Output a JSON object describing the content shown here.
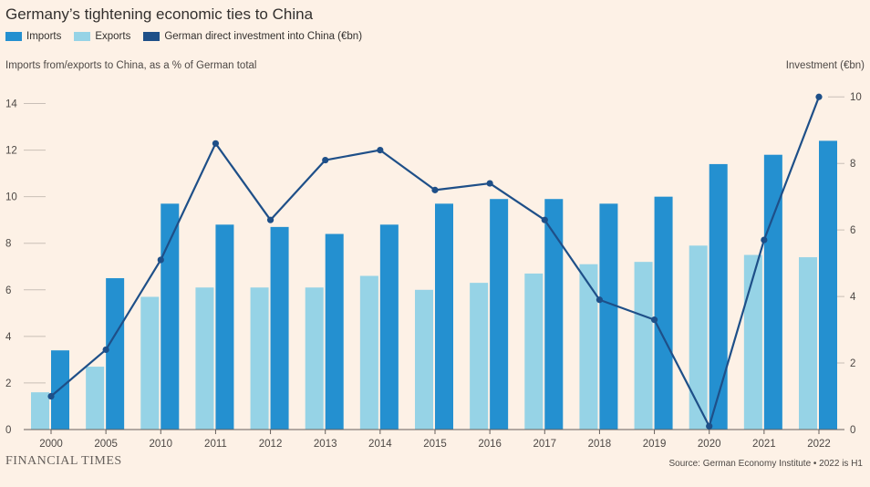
{
  "title": "Germany’s tightening economic ties to China",
  "legend": [
    {
      "label": "Imports",
      "color": "#2490d0"
    },
    {
      "label": "Exports",
      "color": "#96d3e6"
    },
    {
      "label": "German direct investment into China (€bn)",
      "color": "#1e4f88"
    }
  ],
  "left_axis_label": "Imports from/exports to China, as a % of German total",
  "right_axis_label": "Investment (€bn)",
  "brand": "FINANCIAL TIMES",
  "source": "Source: German Economy Institute • 2022 is H1",
  "chart_data": {
    "type": "bar",
    "title": "Germany’s tightening economic ties to China",
    "categories": [
      "2000",
      "2005",
      "2010",
      "2011",
      "2012",
      "2013",
      "2014",
      "2015",
      "2016",
      "2017",
      "2018",
      "2019",
      "2020",
      "2021",
      "2022"
    ],
    "series": [
      {
        "name": "Exports",
        "type": "bar",
        "axis": "left",
        "color": "#96d3e6",
        "values": [
          1.6,
          2.7,
          5.7,
          6.1,
          6.1,
          6.1,
          6.6,
          6.0,
          6.3,
          6.7,
          7.1,
          7.2,
          7.9,
          7.5,
          7.4
        ]
      },
      {
        "name": "Imports",
        "type": "bar",
        "axis": "left",
        "color": "#2490d0",
        "values": [
          3.4,
          6.5,
          9.7,
          8.8,
          8.7,
          8.4,
          8.8,
          9.7,
          9.9,
          9.9,
          9.7,
          10.0,
          11.4,
          11.8,
          12.4
        ]
      },
      {
        "name": "German direct investment into China (€bn)",
        "type": "line",
        "axis": "right",
        "color": "#1e4f88",
        "values": [
          1.0,
          2.4,
          5.1,
          8.6,
          6.3,
          8.1,
          8.4,
          7.2,
          7.4,
          6.3,
          3.9,
          3.3,
          0.1,
          5.7,
          10.0
        ]
      }
    ],
    "ylim_left": [
      0,
      15
    ],
    "yticks_left": [
      "0",
      "2",
      "4",
      "6",
      "8",
      "10",
      "12",
      "14"
    ],
    "ylim_right": [
      0,
      10.5
    ],
    "yticks_right": [
      "0",
      "2",
      "4",
      "6",
      "8",
      "10"
    ],
    "ylabel_left": "Imports from/exports to China, as a % of German total",
    "ylabel_right": "Investment (€bn)",
    "grid": true
  }
}
